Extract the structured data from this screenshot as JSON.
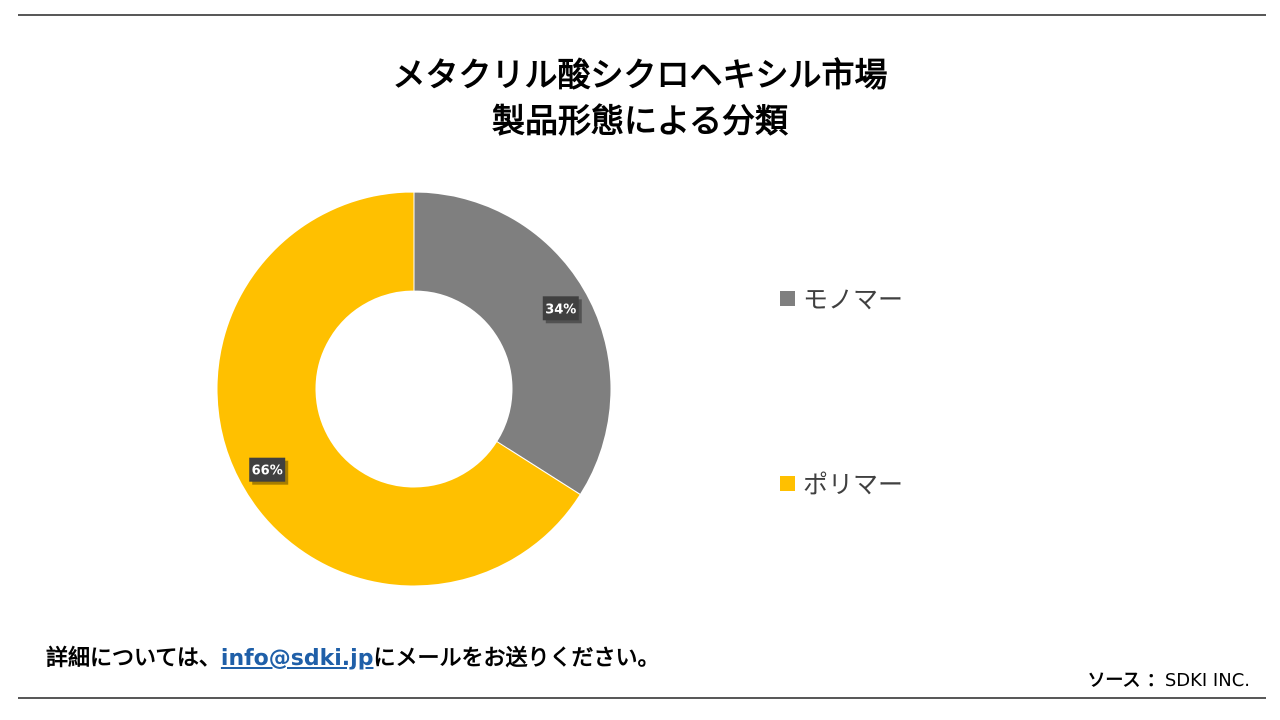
{
  "title_lines": [
    "メタクリル酸シクロヘキシル市場",
    "製品形態による分類"
  ],
  "chart_data": {
    "type": "pie",
    "style": "donut",
    "categories": [
      "モノマー",
      "ポリマー"
    ],
    "values": [
      34,
      66
    ],
    "labels": [
      "34%",
      "66%"
    ],
    "colors": [
      "#7f7f7f",
      "#ffc000"
    ],
    "legend": "right",
    "start_angle": "12 o'clock, clockwise"
  },
  "footer": {
    "prefix": "詳細については、",
    "email": "info@sdki.jp",
    "suffix": "にメールをお送りください。"
  },
  "source": {
    "label": "ソース ：",
    "value": "SDKI INC."
  }
}
